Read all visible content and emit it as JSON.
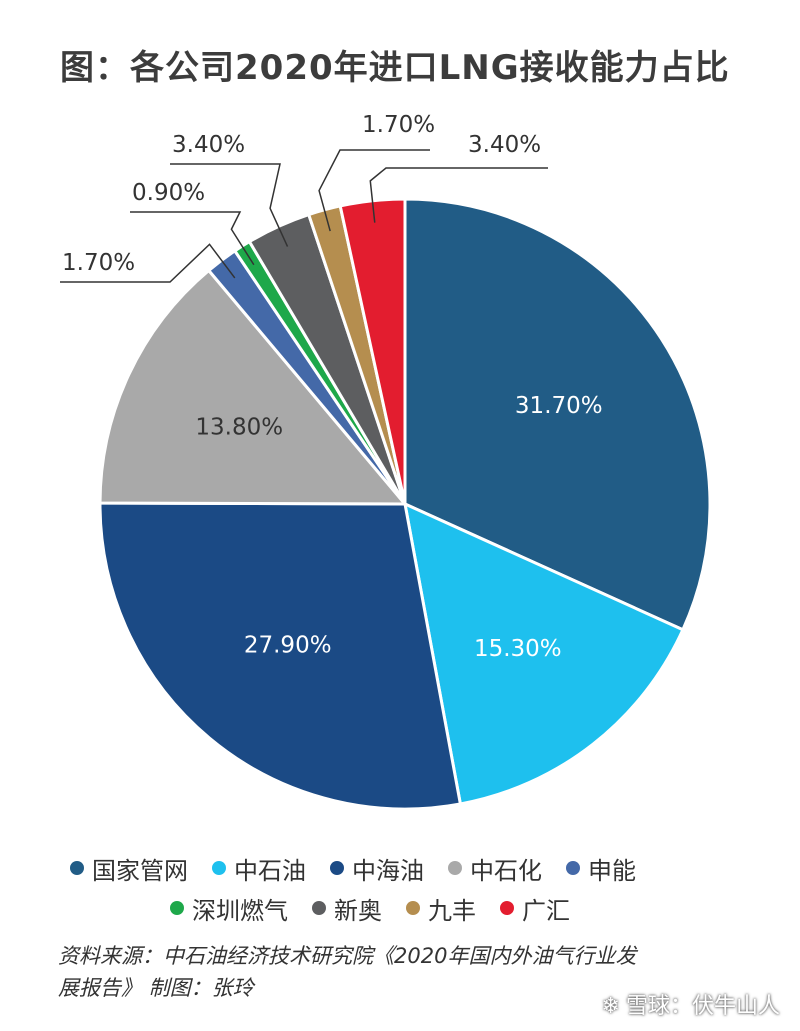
{
  "title": "图：各公司2020年进口LNG接收能力占比",
  "chart_data": {
    "type": "pie",
    "slices": [
      {
        "name": "国家管网",
        "value": 31.7,
        "label": "31.70%",
        "color": "#215c86"
      },
      {
        "name": "中石油",
        "value": 15.3,
        "label": "15.30%",
        "color": "#1ec0ee"
      },
      {
        "name": "中海油",
        "value": 27.9,
        "label": "27.90%",
        "color": "#1b4a85"
      },
      {
        "name": "中石化",
        "value": 13.8,
        "label": "13.80%",
        "color": "#a9a9a9"
      },
      {
        "name": "申能",
        "value": 1.7,
        "label": "1.70%",
        "color": "#4469a8"
      },
      {
        "name": "深圳燃气",
        "value": 0.9,
        "label": "0.90%",
        "color": "#1ea84a"
      },
      {
        "name": "新奥",
        "value": 3.4,
        "label": "3.40%",
        "color": "#5d5e60"
      },
      {
        "name": "九丰",
        "value": 1.7,
        "label": "1.70%",
        "color": "#b58e4f"
      },
      {
        "name": "广汇",
        "value": 3.4,
        "label": "3.40%",
        "color": "#e31d2f"
      }
    ]
  },
  "legend": {
    "row1": [
      "国家管网",
      "中石油",
      "中海油",
      "中石化",
      "申能"
    ],
    "row2": [
      "深圳燃气",
      "新奥",
      "九丰",
      "广汇"
    ]
  },
  "source": {
    "line1": "资料来源：中石油经济技术研究院《2020年国内外油气行业发",
    "line2": "展报告》    制图：张玲"
  },
  "watermark": "雪球：伏牛山人"
}
